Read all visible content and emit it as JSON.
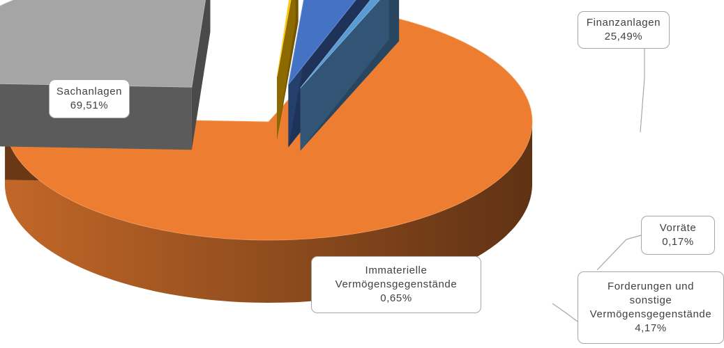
{
  "chart_data": {
    "type": "pie",
    "style": "3d-exploded",
    "title": "",
    "legend": "none",
    "slices": [
      {
        "id": "sachanlagen",
        "label": "Sachanlagen",
        "value": 69.51,
        "value_label": "69,51%",
        "color": "#ED7D31",
        "label_lines": [
          "Sachanlagen"
        ]
      },
      {
        "id": "finanzanlagen",
        "label": "Finanzanlagen",
        "value": 25.49,
        "value_label": "25,49%",
        "color": "#A5A5A5",
        "label_lines": [
          "Finanzanlagen"
        ]
      },
      {
        "id": "vorraete",
        "label": "Vorräte",
        "value": 0.17,
        "value_label": "0,17%",
        "color": "#FFC000",
        "label_lines": [
          "Vorräte"
        ]
      },
      {
        "id": "forderungen",
        "label": "Forderungen und sonstige Vermögensgegenstände",
        "value": 4.17,
        "value_label": "4,17%",
        "color": "#4472C4",
        "label_lines": [
          "Forderungen und",
          "sonstige",
          "Vermögensgegenstände"
        ]
      },
      {
        "id": "immaterielle",
        "label": "Immaterielle Vermögensgegenstände",
        "value": 0.65,
        "value_label": "0,65%",
        "color": "#5B9BD5",
        "label_lines": [
          "Immaterielle",
          "Vermögensgegenstände"
        ]
      }
    ]
  }
}
